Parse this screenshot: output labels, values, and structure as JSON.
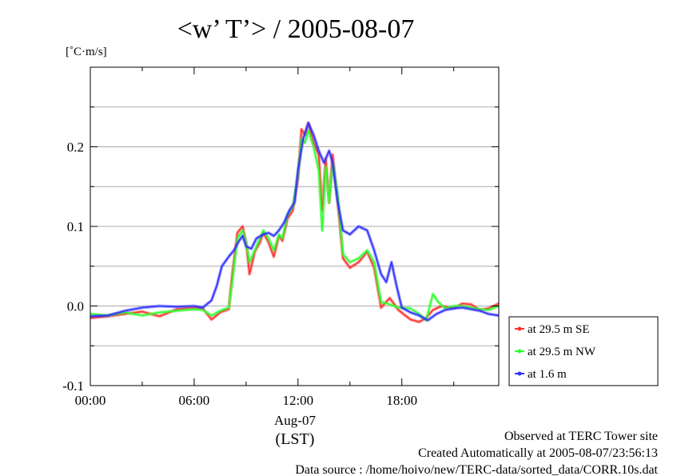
{
  "chart_data": {
    "type": "line",
    "title": "<w’ T’> / 2005-08-07",
    "ylabel": "[˚C·m/s]",
    "xlabel": "",
    "date_label": "Aug-07",
    "timezone_label": "(LST)",
    "x_ticks": [
      "00:00",
      "06:00",
      "12:00",
      "18:00"
    ],
    "y_ticks": [
      "0.2",
      "0.1",
      "0.0",
      "-0.1"
    ],
    "xlim_hours": [
      0,
      23.6
    ],
    "ylim": [
      -0.1,
      0.3
    ],
    "grid": "horizontal",
    "legend_position": "right",
    "series": [
      {
        "name": "at 29.5 m SE",
        "color": "#ff3030",
        "points": [
          [
            0,
            -0.015
          ],
          [
            1,
            -0.013
          ],
          [
            2,
            -0.01
          ],
          [
            3,
            -0.007
          ],
          [
            4,
            -0.013
          ],
          [
            5,
            -0.004
          ],
          [
            6,
            -0.002
          ],
          [
            6.5,
            -0.003
          ],
          [
            7,
            -0.017
          ],
          [
            7.5,
            -0.008
          ],
          [
            8,
            -0.004
          ],
          [
            8.2,
            0.04
          ],
          [
            8.5,
            0.092
          ],
          [
            8.8,
            0.1
          ],
          [
            9,
            0.08
          ],
          [
            9.2,
            0.04
          ],
          [
            9.5,
            0.068
          ],
          [
            9.8,
            0.08
          ],
          [
            10,
            0.092
          ],
          [
            10.3,
            0.08
          ],
          [
            10.6,
            0.062
          ],
          [
            10.9,
            0.088
          ],
          [
            11.1,
            0.082
          ],
          [
            11.4,
            0.11
          ],
          [
            11.7,
            0.12
          ],
          [
            12.0,
            0.16
          ],
          [
            12.2,
            0.222
          ],
          [
            12.4,
            0.215
          ],
          [
            12.6,
            0.23
          ],
          [
            12.9,
            0.205
          ],
          [
            13.2,
            0.19
          ],
          [
            13.4,
            0.12
          ],
          [
            13.6,
            0.185
          ],
          [
            13.8,
            0.13
          ],
          [
            14.0,
            0.19
          ],
          [
            14.3,
            0.13
          ],
          [
            14.6,
            0.06
          ],
          [
            15.0,
            0.048
          ],
          [
            15.5,
            0.055
          ],
          [
            16.0,
            0.068
          ],
          [
            16.4,
            0.048
          ],
          [
            16.8,
            -0.002
          ],
          [
            17.3,
            0.01
          ],
          [
            17.8,
            -0.005
          ],
          [
            18.5,
            -0.017
          ],
          [
            19.0,
            -0.02
          ],
          [
            19.4,
            -0.015
          ],
          [
            19.8,
            -0.005
          ],
          [
            20.3,
            0.0
          ],
          [
            21,
            -0.003
          ],
          [
            21.5,
            0.003
          ],
          [
            22,
            0.002
          ],
          [
            22.5,
            -0.005
          ],
          [
            23.0,
            -0.003
          ],
          [
            23.6,
            0.003
          ]
        ]
      },
      {
        "name": "at 29.5 m NW",
        "color": "#30ff30",
        "points": [
          [
            0,
            -0.01
          ],
          [
            1,
            -0.012
          ],
          [
            2,
            -0.008
          ],
          [
            3,
            -0.012
          ],
          [
            4,
            -0.008
          ],
          [
            5,
            -0.006
          ],
          [
            6,
            -0.004
          ],
          [
            6.5,
            -0.005
          ],
          [
            7,
            -0.012
          ],
          [
            7.5,
            -0.006
          ],
          [
            8,
            -0.002
          ],
          [
            8.2,
            0.03
          ],
          [
            8.5,
            0.085
          ],
          [
            8.8,
            0.095
          ],
          [
            9,
            0.08
          ],
          [
            9.2,
            0.055
          ],
          [
            9.5,
            0.07
          ],
          [
            9.8,
            0.085
          ],
          [
            10,
            0.095
          ],
          [
            10.3,
            0.085
          ],
          [
            10.6,
            0.07
          ],
          [
            10.9,
            0.09
          ],
          [
            11.1,
            0.085
          ],
          [
            11.4,
            0.115
          ],
          [
            11.7,
            0.125
          ],
          [
            12.0,
            0.165
          ],
          [
            12.2,
            0.21
          ],
          [
            12.4,
            0.205
          ],
          [
            12.6,
            0.22
          ],
          [
            12.9,
            0.2
          ],
          [
            13.2,
            0.17
          ],
          [
            13.4,
            0.095
          ],
          [
            13.6,
            0.175
          ],
          [
            13.8,
            0.13
          ],
          [
            14.0,
            0.18
          ],
          [
            14.3,
            0.14
          ],
          [
            14.6,
            0.065
          ],
          [
            15.0,
            0.055
          ],
          [
            15.5,
            0.06
          ],
          [
            16.0,
            0.07
          ],
          [
            16.4,
            0.055
          ],
          [
            16.8,
            0.005
          ],
          [
            17.3,
            0.002
          ],
          [
            17.8,
            -0.002
          ],
          [
            18.5,
            -0.003
          ],
          [
            19.0,
            -0.01
          ],
          [
            19.4,
            -0.018
          ],
          [
            19.8,
            0.015
          ],
          [
            20.1,
            0.005
          ],
          [
            20.5,
            -0.003
          ],
          [
            21,
            0.0
          ],
          [
            21.5,
            0.0
          ],
          [
            22,
            -0.002
          ],
          [
            22.5,
            -0.004
          ],
          [
            23.0,
            -0.005
          ],
          [
            23.6,
            0.0
          ]
        ]
      },
      {
        "name": "at 1.6 m",
        "color": "#3030ff",
        "points": [
          [
            0,
            -0.013
          ],
          [
            1,
            -0.012
          ],
          [
            2,
            -0.006
          ],
          [
            3,
            -0.002
          ],
          [
            4,
            0.0
          ],
          [
            5,
            -0.001
          ],
          [
            6,
            0.0
          ],
          [
            6.5,
            -0.002
          ],
          [
            7,
            0.007
          ],
          [
            7.3,
            0.025
          ],
          [
            7.6,
            0.05
          ],
          [
            8,
            0.062
          ],
          [
            8.3,
            0.07
          ],
          [
            8.6,
            0.082
          ],
          [
            8.8,
            0.088
          ],
          [
            9,
            0.075
          ],
          [
            9.3,
            0.072
          ],
          [
            9.6,
            0.085
          ],
          [
            10,
            0.09
          ],
          [
            10.3,
            0.092
          ],
          [
            10.6,
            0.088
          ],
          [
            10.9,
            0.095
          ],
          [
            11.2,
            0.105
          ],
          [
            11.5,
            0.12
          ],
          [
            11.8,
            0.13
          ],
          [
            12.0,
            0.17
          ],
          [
            12.3,
            0.21
          ],
          [
            12.6,
            0.23
          ],
          [
            12.9,
            0.215
          ],
          [
            13.2,
            0.195
          ],
          [
            13.5,
            0.18
          ],
          [
            13.8,
            0.195
          ],
          [
            14.0,
            0.18
          ],
          [
            14.3,
            0.13
          ],
          [
            14.6,
            0.095
          ],
          [
            15.0,
            0.09
          ],
          [
            15.5,
            0.1
          ],
          [
            16.0,
            0.095
          ],
          [
            16.4,
            0.07
          ],
          [
            16.8,
            0.04
          ],
          [
            17.1,
            0.03
          ],
          [
            17.4,
            0.055
          ],
          [
            17.7,
            0.025
          ],
          [
            18.0,
            -0.002
          ],
          [
            18.5,
            -0.008
          ],
          [
            19.0,
            -0.012
          ],
          [
            19.5,
            -0.018
          ],
          [
            20.0,
            -0.01
          ],
          [
            20.5,
            -0.005
          ],
          [
            21,
            -0.003
          ],
          [
            21.5,
            -0.002
          ],
          [
            22,
            -0.004
          ],
          [
            22.5,
            -0.006
          ],
          [
            23.0,
            -0.01
          ],
          [
            23.6,
            -0.012
          ]
        ]
      }
    ]
  },
  "footer": {
    "line1": "Observed at TERC Tower site",
    "line2": "Created Automatically at 2005-08-07/23:56:13",
    "line3": "Data source : /home/hoivo/new/TERC-data/sorted_data/CORR.10s.dat"
  }
}
